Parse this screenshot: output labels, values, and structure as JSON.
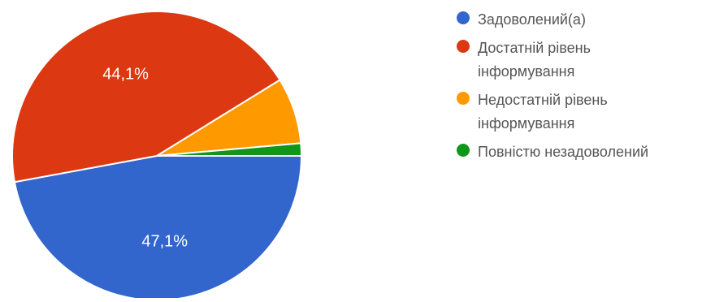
{
  "chart_data": {
    "type": "pie",
    "slices": [
      {
        "name": "Задоволений(а)",
        "legend_lines": [
          "Задоволений(а)"
        ],
        "value": 47.1,
        "label": "47,1%",
        "color": "#3366cc"
      },
      {
        "name": "Достатній рівень інформування",
        "legend_lines": [
          "Достатній рівень",
          "інформування"
        ],
        "value": 44.1,
        "label": "44,1%",
        "color": "#dc3912"
      },
      {
        "name": "Недостатній рівень інформування",
        "legend_lines": [
          "Недостатній рівень",
          "інформування"
        ],
        "value": 7.4,
        "label": "",
        "color": "#ff9900"
      },
      {
        "name": "Повністю незадоволений",
        "legend_lines": [
          "Повністю незадоволений"
        ],
        "value": 1.4,
        "label": "",
        "color": "#109618"
      }
    ],
    "legend_position": "right"
  }
}
